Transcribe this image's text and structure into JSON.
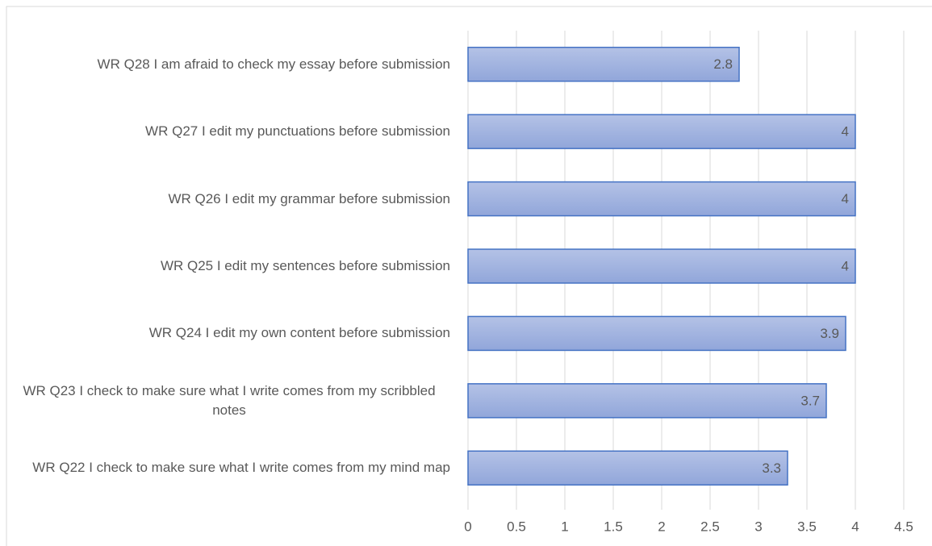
{
  "chart_data": {
    "type": "barh",
    "categories": [
      "WR Q28 I am afraid to check my essay before submission",
      "WR Q27 I edit my punctuations before submission",
      "WR Q26 I edit my grammar before submission",
      "WR Q25 I edit my sentences before submission",
      "WR Q24 I edit my own content before submission",
      "WR Q23 I check to make sure what I write comes from my scribbled notes",
      "WR Q22 I check to make sure what I write comes from my mind map"
    ],
    "values": [
      2.8,
      4,
      4,
      4,
      3.9,
      3.7,
      3.3
    ],
    "color": "#4472c4",
    "xlim": [
      0,
      4.5
    ],
    "xticks": [
      0,
      0.5,
      1,
      1.5,
      2,
      2.5,
      3,
      3.5,
      4,
      4.5
    ],
    "grid": true
  }
}
